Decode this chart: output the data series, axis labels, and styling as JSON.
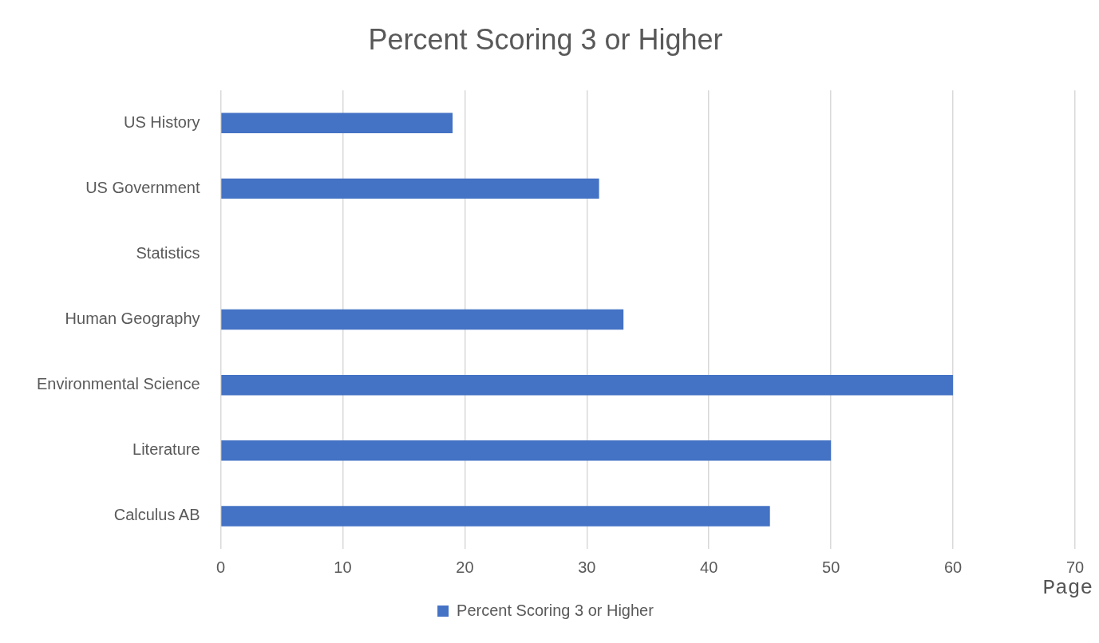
{
  "chart_data": {
    "type": "bar",
    "orientation": "horizontal",
    "title": "Percent Scoring 3 or Higher",
    "categories": [
      "US History",
      "US Government",
      "Statistics",
      "Human Geography",
      "Environmental Science",
      "Literature",
      "Calculus AB"
    ],
    "series": [
      {
        "name": "Percent Scoring 3 or Higher",
        "color": "#4472c4",
        "values": [
          19,
          31,
          0,
          33,
          60,
          50,
          45
        ]
      }
    ],
    "xlim": [
      0,
      70
    ],
    "xticks": [
      0,
      10,
      20,
      30,
      40,
      50,
      60,
      70
    ],
    "grid": "x",
    "legend": "bottom",
    "annotations": [
      "Page"
    ]
  }
}
